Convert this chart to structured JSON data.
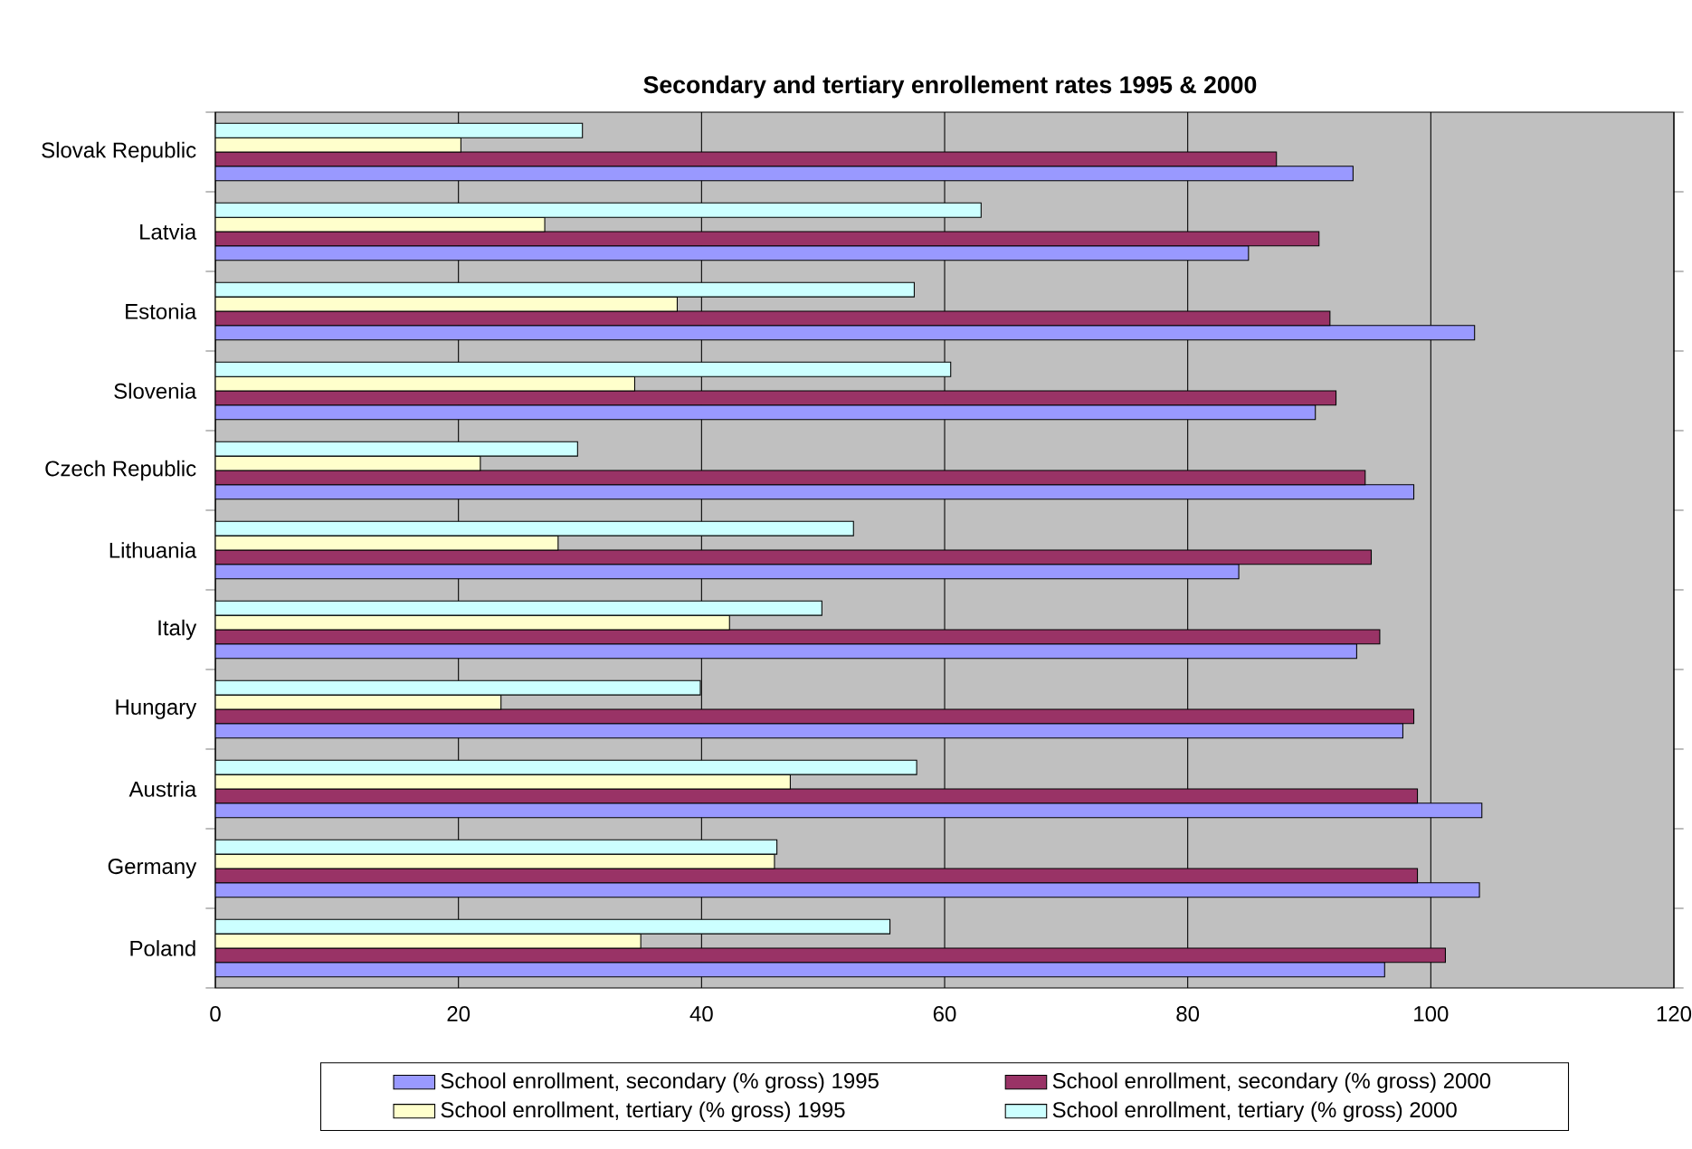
{
  "chart_data": {
    "type": "bar",
    "orientation": "horizontal",
    "title": "Secondary and tertiary enrollement rates 1995 & 2000",
    "categories": [
      "Slovak Republic",
      "Latvia",
      "Estonia",
      "Slovenia",
      "Czech Republic",
      "Lithuania",
      "Italy",
      "Hungary",
      "Austria",
      "Germany",
      "Poland"
    ],
    "series": [
      {
        "name": "School enrollment, secondary (% gross) 1995",
        "color": "#9999ff",
        "values": [
          93.6,
          85.0,
          103.6,
          90.5,
          98.6,
          84.2,
          93.9,
          97.7,
          104.2,
          104.0,
          96.2
        ]
      },
      {
        "name": "School enrollment, secondary (% gross) 2000",
        "color": "#993366",
        "values": [
          87.3,
          90.8,
          91.7,
          92.2,
          94.6,
          95.1,
          95.8,
          98.6,
          98.9,
          98.9,
          101.2
        ]
      },
      {
        "name": "School enrollment, tertiary (% gross) 1995",
        "color": "#ffffcc",
        "values": [
          20.2,
          27.1,
          38.0,
          34.5,
          21.8,
          28.2,
          42.3,
          23.5,
          47.3,
          46.0,
          35.0
        ]
      },
      {
        "name": "School enrollment, tertiary (% gross) 2000",
        "color": "#ccffff",
        "values": [
          30.2,
          63.0,
          57.5,
          60.5,
          29.8,
          52.5,
          49.9,
          39.9,
          57.7,
          46.2,
          55.5
        ]
      }
    ],
    "xlim": [
      0,
      120
    ],
    "xticks": [
      0,
      20,
      40,
      60,
      80,
      100,
      120
    ],
    "grid": "x",
    "legend": "bottom"
  }
}
